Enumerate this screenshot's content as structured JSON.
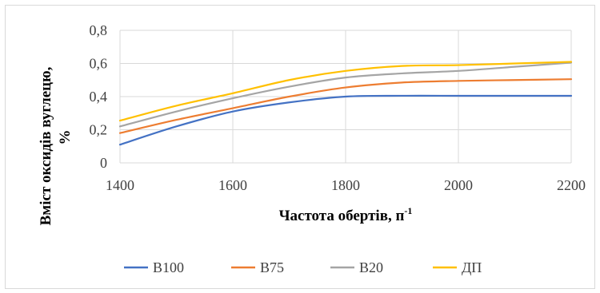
{
  "chart_data": {
    "type": "line",
    "xlabel_main": "Частота обертів, п",
    "xlabel_sup": "-1",
    "ylabel_line1": "Вміст оксидів вуглецю,",
    "ylabel_line2": "%",
    "x": [
      1400,
      1500,
      1600,
      1700,
      1800,
      1900,
      2000,
      2100,
      2200
    ],
    "x_ticks": [
      "1400",
      "1600",
      "1800",
      "2000",
      "2200"
    ],
    "x_tick_values": [
      1400,
      1600,
      1800,
      2000,
      2200
    ],
    "y_ticks": [
      "0",
      "0,2",
      "0,4",
      "0,6",
      "0,8"
    ],
    "y_tick_values": [
      0,
      0.2,
      0.4,
      0.6,
      0.8
    ],
    "xlim": [
      1400,
      2200
    ],
    "ylim": [
      0,
      0.8
    ],
    "grid": "vertical and horizontal",
    "legend_position": "bottom",
    "series": [
      {
        "name": "В100",
        "color": "#4472C4",
        "values": [
          0.11,
          0.22,
          0.31,
          0.365,
          0.4,
          0.405,
          0.405,
          0.405,
          0.405
        ]
      },
      {
        "name": "В75",
        "color": "#ED7D31",
        "values": [
          0.18,
          0.26,
          0.33,
          0.4,
          0.455,
          0.485,
          0.495,
          0.5,
          0.505
        ]
      },
      {
        "name": "В20",
        "color": "#A5A5A5",
        "values": [
          0.22,
          0.31,
          0.39,
          0.46,
          0.515,
          0.54,
          0.555,
          0.58,
          0.605
        ]
      },
      {
        "name": "ДП",
        "color": "#FFC000",
        "values": [
          0.255,
          0.345,
          0.42,
          0.5,
          0.555,
          0.585,
          0.59,
          0.6,
          0.61
        ]
      }
    ]
  }
}
